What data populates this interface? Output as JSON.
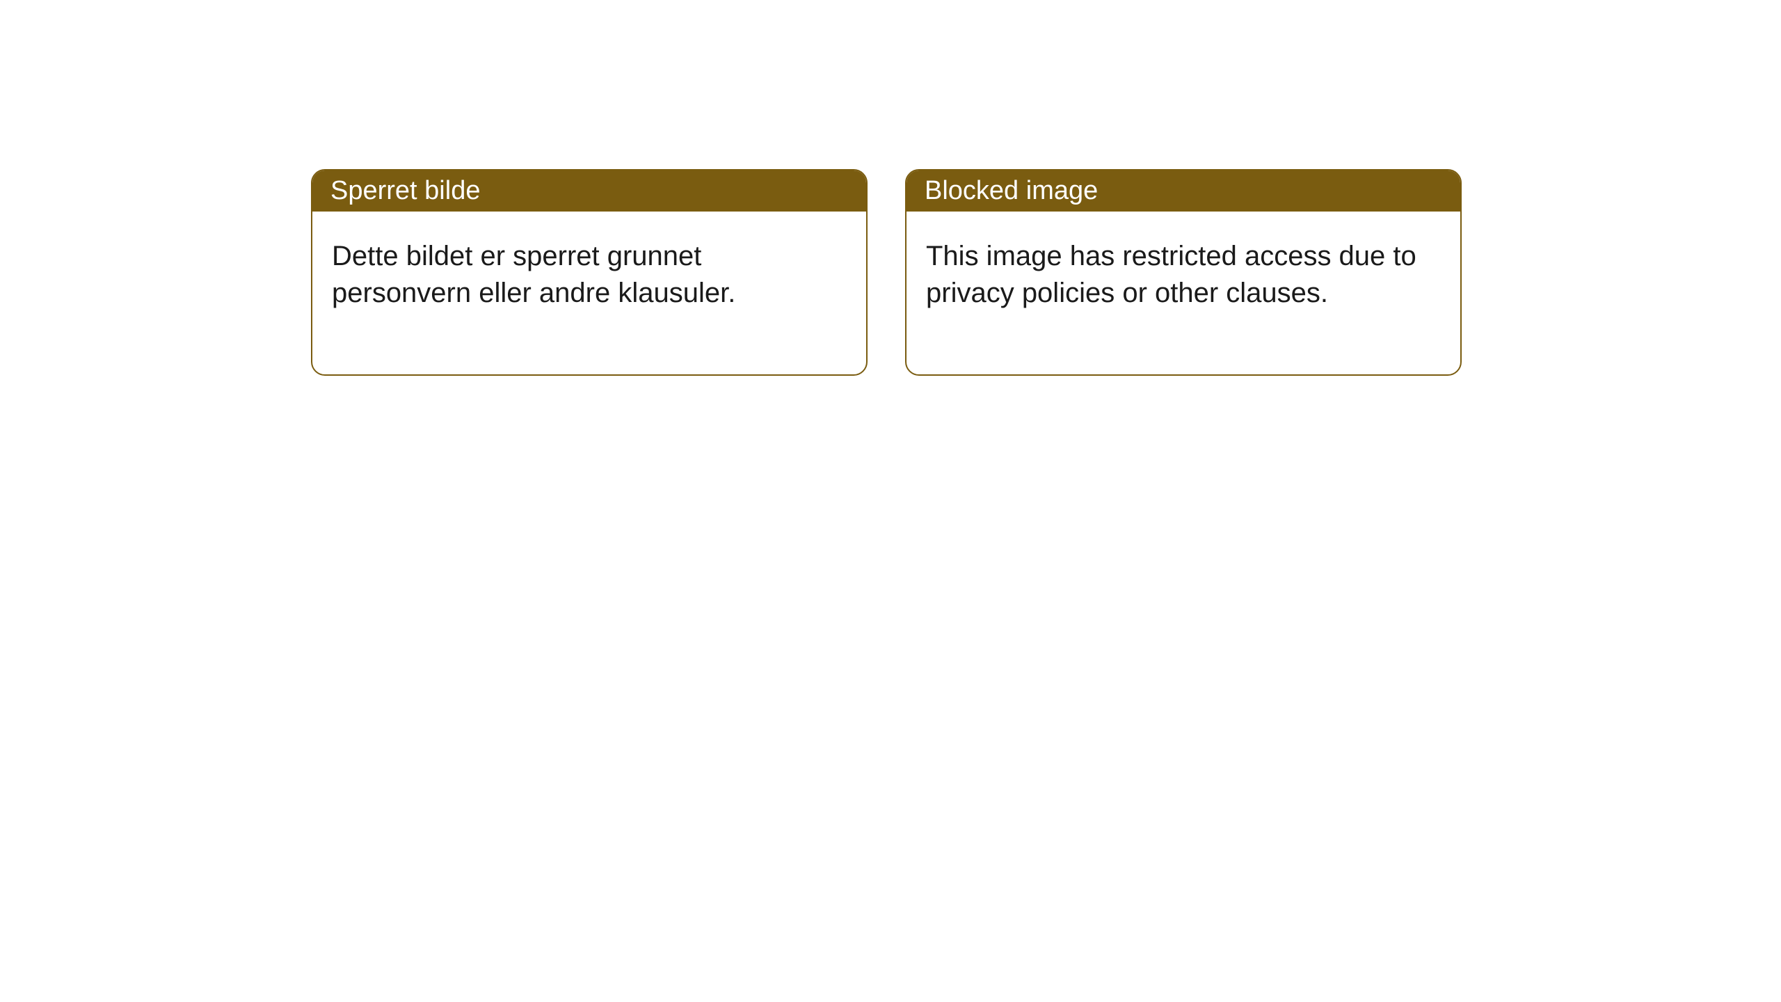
{
  "layout": {
    "background_color": "#ffffff",
    "card_border_color": "#7a5c10",
    "header_background_color": "#7a5c10",
    "header_text_color": "#ffffff",
    "body_text_color": "#1a1a1a",
    "header_fontsize": 38,
    "body_fontsize": 40,
    "border_radius": 20
  },
  "cards": [
    {
      "title": "Sperret bilde",
      "body": "Dette bildet er sperret grunnet personvern eller andre klausuler."
    },
    {
      "title": "Blocked image",
      "body": "This image has restricted access due to privacy policies or other clauses."
    }
  ]
}
